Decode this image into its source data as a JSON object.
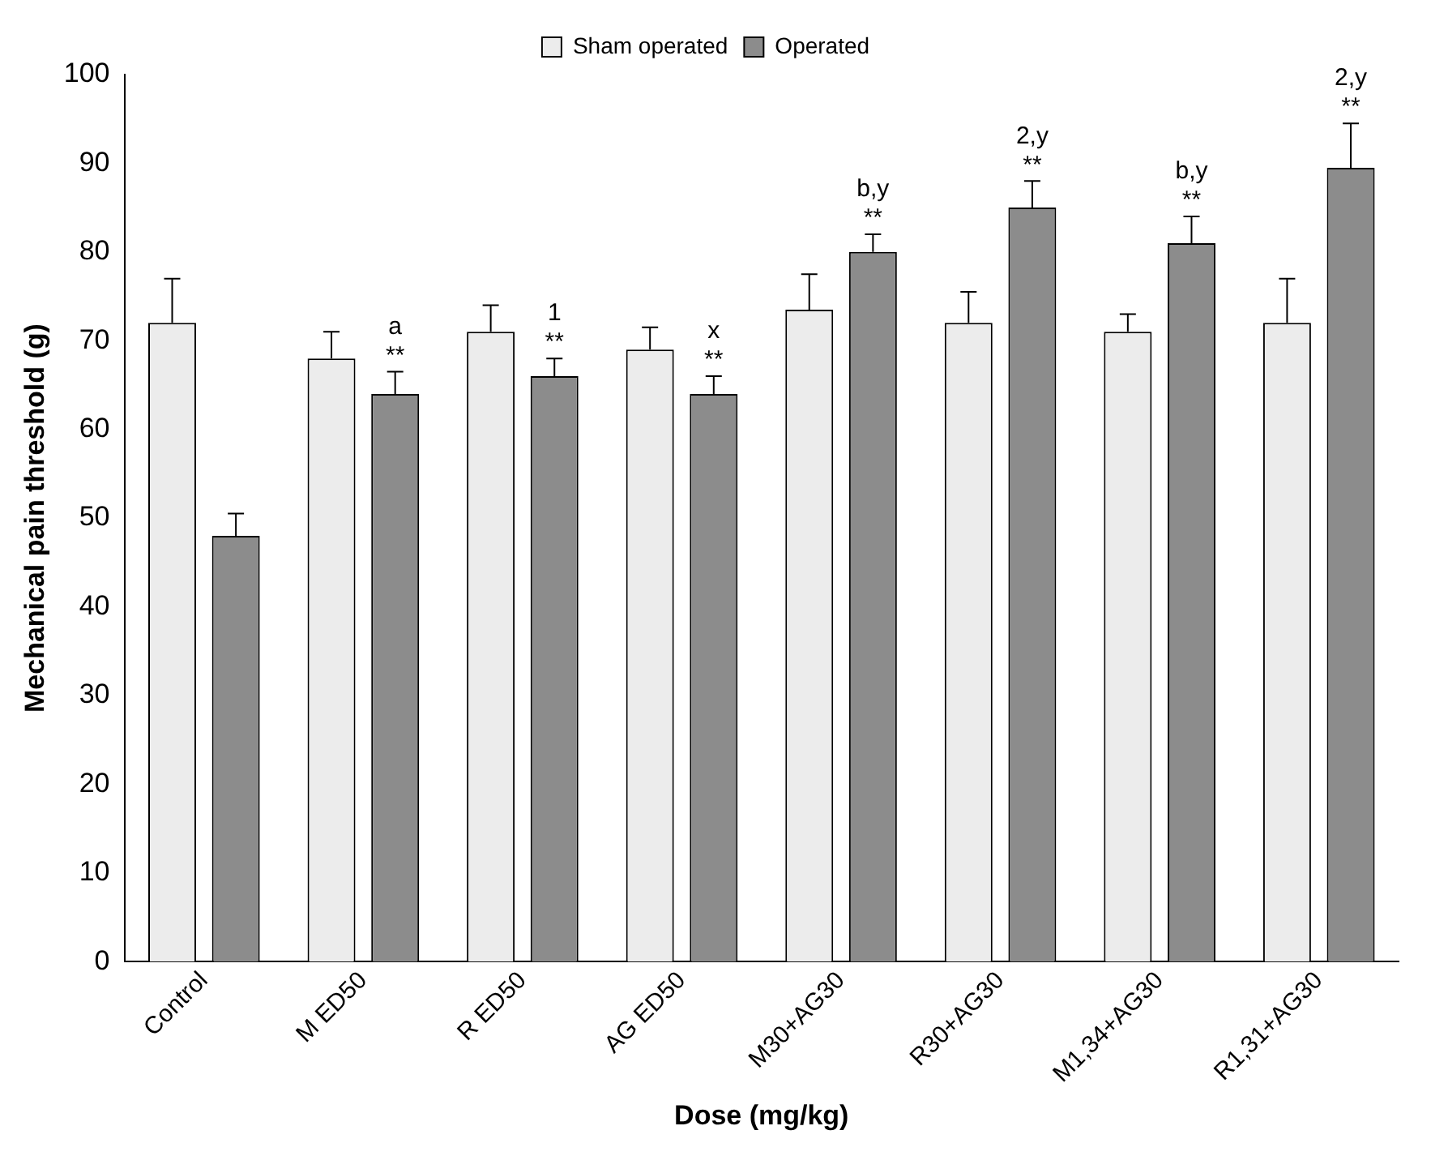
{
  "chart_data": {
    "type": "bar",
    "xlabel": "Dose (mg/kg)",
    "ylabel": "Mechanical pain threshold (g)",
    "categories": [
      "Control",
      "M ED50",
      "R ED50",
      "AG ED50",
      "M30+AG30",
      "R30+AG30",
      "M1,34+AG30",
      "R1,31+AG30"
    ],
    "series": [
      {
        "name": "Sham operated",
        "color": "#ececec",
        "values": [
          72,
          68,
          71,
          69,
          73.5,
          72,
          71,
          72
        ],
        "errors": [
          5,
          3,
          3,
          2.5,
          4,
          3.5,
          2,
          5
        ]
      },
      {
        "name": "Operated",
        "color": "#8c8c8c",
        "values": [
          48,
          64,
          66,
          64,
          80,
          85,
          81,
          89.5
        ],
        "errors": [
          2.5,
          2.5,
          2,
          2,
          2,
          3,
          3,
          5
        ]
      }
    ],
    "ylim": [
      0,
      100
    ],
    "yticks": [
      0,
      10,
      20,
      30,
      40,
      50,
      60,
      70,
      80,
      90,
      100
    ],
    "grid": false,
    "legend": "top",
    "annotations": [
      "**",
      "a",
      "**",
      "1",
      "**",
      "x",
      "**",
      "b,y",
      "**",
      "2,y",
      "**",
      "b,y",
      "**",
      "2,y"
    ]
  }
}
